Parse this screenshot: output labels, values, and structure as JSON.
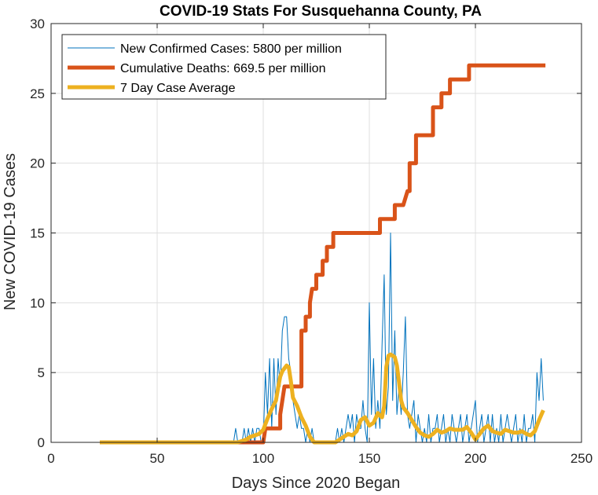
{
  "chart_data": {
    "type": "line",
    "title": "COVID-19 Stats For Susquehanna County, PA",
    "xlabel": "Days Since 2020 Began",
    "ylabel": "New COVID-19 Cases",
    "xlim": [
      0,
      250
    ],
    "ylim": [
      0,
      30
    ],
    "xticks": [
      0,
      50,
      100,
      150,
      200,
      250
    ],
    "yticks": [
      0,
      5,
      10,
      15,
      20,
      25,
      30
    ],
    "grid": true,
    "legend_position": "top-left",
    "series": [
      {
        "name": "New Confirmed Cases: 5800 per million",
        "color": "#0072BD",
        "line_style": "thin",
        "x": [
          23,
          40,
          60,
          80,
          86,
          87,
          88,
          89,
          90,
          91,
          92,
          93,
          94,
          95,
          96,
          97,
          98,
          99,
          100,
          101,
          102,
          103,
          104,
          105,
          106,
          107,
          108,
          109,
          110,
          111,
          112,
          113,
          114,
          115,
          116,
          117,
          118,
          119,
          120,
          121,
          122,
          123,
          124,
          125,
          126,
          127,
          128,
          129,
          130,
          131,
          132,
          133,
          134,
          135,
          136,
          137,
          138,
          139,
          140,
          141,
          142,
          143,
          144,
          145,
          146,
          147,
          148,
          149,
          150,
          151,
          152,
          153,
          154,
          155,
          156,
          157,
          158,
          159,
          160,
          161,
          162,
          163,
          164,
          165,
          166,
          167,
          168,
          169,
          170,
          171,
          172,
          173,
          174,
          175,
          176,
          177,
          178,
          179,
          180,
          181,
          182,
          183,
          184,
          185,
          186,
          187,
          188,
          189,
          190,
          191,
          192,
          193,
          194,
          195,
          196,
          197,
          198,
          199,
          200,
          201,
          202,
          203,
          204,
          205,
          206,
          207,
          208,
          209,
          210,
          211,
          212,
          213,
          214,
          215,
          216,
          217,
          218,
          219,
          220,
          221,
          222,
          223,
          224,
          225,
          226,
          227,
          228,
          229,
          230,
          231,
          232
        ],
        "values": [
          0,
          0,
          0,
          0,
          0,
          1,
          0,
          0,
          0,
          1,
          0,
          1,
          0,
          1,
          0,
          1,
          1,
          0,
          0,
          5,
          2,
          6,
          1,
          6,
          2,
          6,
          4,
          8,
          9,
          9,
          6,
          5,
          3,
          2,
          1,
          2,
          1,
          1,
          0,
          1,
          0,
          1,
          0,
          0,
          0,
          0,
          0,
          0,
          0,
          0,
          0,
          0,
          0,
          1,
          0,
          1,
          0,
          1,
          2,
          1,
          2,
          0,
          2,
          1,
          1,
          3,
          1,
          0,
          10,
          2,
          6,
          1,
          3,
          1,
          7,
          12,
          2,
          4,
          15,
          3,
          8,
          2,
          4,
          2,
          5,
          9,
          2,
          1,
          2,
          3,
          0,
          2,
          1,
          0,
          1,
          0,
          2,
          0,
          1,
          1,
          2,
          0,
          1,
          2,
          0,
          1,
          0,
          2,
          1,
          0,
          1,
          2,
          0,
          1,
          2,
          0,
          1,
          2,
          3,
          0,
          1,
          2,
          0,
          1,
          2,
          0,
          2,
          0,
          1,
          0,
          2,
          0,
          1,
          2,
          1,
          0,
          1,
          2,
          0,
          1,
          0,
          2,
          0,
          1,
          1,
          2,
          0,
          5,
          3,
          6,
          3
        ]
      },
      {
        "name": "Cumulative Deaths: 669.5 per million",
        "color": "#D95319",
        "line_style": "thick",
        "x": [
          23,
          80,
          88,
          100,
          100,
          101,
          108,
          108,
          109,
          110,
          118,
          118,
          120,
          120,
          122,
          122,
          123,
          124,
          125,
          125,
          128,
          128,
          130,
          130,
          133,
          133,
          136,
          136,
          139,
          139,
          143,
          143,
          150,
          155,
          155,
          159,
          159,
          162,
          162,
          166,
          166,
          168,
          169,
          169,
          172,
          172,
          176,
          176,
          180,
          180,
          184,
          184,
          188,
          188,
          192,
          192,
          197,
          197,
          217,
          217,
          233
        ],
        "values": [
          0,
          0,
          0,
          0,
          0,
          1,
          1,
          2,
          3,
          4,
          4,
          8,
          8,
          9,
          9,
          10,
          11,
          11,
          11,
          12,
          12,
          13,
          13,
          14,
          14,
          15,
          15,
          15,
          15,
          15,
          15,
          15,
          15,
          15,
          16,
          16,
          16,
          16,
          17,
          17,
          17,
          18,
          18,
          20,
          20,
          22,
          22,
          22,
          22,
          24,
          24,
          25,
          25,
          26,
          26,
          26,
          26,
          27,
          27,
          27,
          27
        ]
      },
      {
        "name": "7 Day Case Average",
        "color": "#EDB120",
        "line_style": "thick",
        "x": [
          23,
          40,
          60,
          80,
          88,
          90,
          92,
          94,
          96,
          98,
          100,
          102,
          104,
          106,
          107,
          108,
          109,
          110,
          111,
          112,
          113,
          114,
          116,
          118,
          120,
          122,
          124,
          126,
          128,
          130,
          132,
          134,
          136,
          138,
          140,
          142,
          144,
          146,
          148,
          150,
          152,
          154,
          155,
          156,
          157,
          158,
          159,
          160,
          161,
          162,
          163,
          164,
          165,
          166,
          168,
          170,
          172,
          174,
          176,
          178,
          180,
          182,
          184,
          186,
          188,
          190,
          192,
          194,
          196,
          198,
          200,
          202,
          204,
          206,
          208,
          210,
          212,
          214,
          216,
          218,
          220,
          222,
          224,
          226,
          228,
          230,
          232
        ],
        "values": [
          0,
          0,
          0,
          0,
          0,
          0.1,
          0.2,
          0.4,
          0.5,
          0.6,
          0.9,
          1.7,
          2.4,
          3,
          3.9,
          4.7,
          5.1,
          5.3,
          5.5,
          5.4,
          4.4,
          3.2,
          2.6,
          1.8,
          1.2,
          0.4,
          0,
          0,
          0,
          0,
          0,
          0,
          0.2,
          0.4,
          0.6,
          0.5,
          0.8,
          1.6,
          1.8,
          1.2,
          1.4,
          2.1,
          1.9,
          1.8,
          2.6,
          5.4,
          6.2,
          6.3,
          6.2,
          6.1,
          5.5,
          4.3,
          3,
          2.5,
          2.1,
          1.6,
          1.1,
          0.7,
          0.5,
          0.4,
          0.6,
          0.9,
          0.7,
          0.8,
          1,
          0.9,
          0.9,
          0.9,
          1.1,
          0.7,
          0.2,
          0.6,
          1,
          1.2,
          0.8,
          0.7,
          0.6,
          0.9,
          0.8,
          0.7,
          0.7,
          0.8,
          0.6,
          0.5,
          0.8,
          1.6,
          2.3
        ]
      }
    ]
  }
}
